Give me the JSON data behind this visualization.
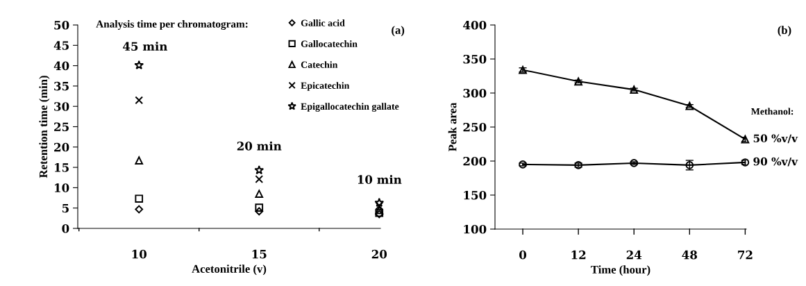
{
  "chart_data": [
    {
      "type": "scatter",
      "categories": [
        "10",
        "15",
        "20"
      ],
      "xlabel": "Acetonitrile (v)",
      "ylabel": "Retention time (min)",
      "ylim": [
        0,
        50
      ],
      "yticks": [
        0,
        5,
        10,
        15,
        20,
        25,
        30,
        35,
        40,
        45,
        50
      ],
      "grid": false,
      "legend": "top right",
      "annotations": [
        "Analysis time per chromatogram:",
        "(a)",
        "45 min",
        "20 min",
        "10 min"
      ],
      "series": [
        {
          "name": "Gallic acid",
          "color": "#000000",
          "marker": "diamond",
          "values": [
            4.7,
            4.2,
            3.5
          ]
        },
        {
          "name": "Gallocatechin",
          "color": "#000000",
          "marker": "square",
          "values": [
            7.3,
            5.1,
            3.8
          ]
        },
        {
          "name": "Catechin",
          "color": "#000000",
          "marker": "triangle",
          "values": [
            16.7,
            8.5,
            4.5
          ]
        },
        {
          "name": "Epicatechin",
          "color": "#000000",
          "marker": "cross",
          "values": [
            31.5,
            12.1,
            5.5
          ]
        },
        {
          "name": "Epigallocatechin gallate",
          "color": "#000000",
          "marker": "star",
          "values": [
            40.1,
            14.3,
            6.3
          ]
        }
      ]
    },
    {
      "type": "line",
      "categories": [
        "0",
        "12",
        "24",
        "48",
        "72"
      ],
      "xlabel": "Time (hour)",
      "ylabel": "Peak area",
      "ylim": [
        100,
        400
      ],
      "yticks": [
        100,
        150,
        200,
        250,
        300,
        350,
        400
      ],
      "grid": false,
      "legend": false,
      "legend_title": "Methanol:",
      "line_style": "solid",
      "annotations": [
        "(b)"
      ],
      "series": [
        {
          "name": "50 %v/v",
          "color": "#000000",
          "marker": "triangle",
          "values": [
            334,
            317,
            305,
            281,
            232
          ],
          "errors": [
            3,
            2,
            2,
            2,
            3
          ]
        },
        {
          "name": "90 %v/v",
          "color": "#000000",
          "marker": "circle",
          "values": [
            195,
            194,
            197,
            194,
            198
          ],
          "errors": [
            2,
            3,
            2,
            7,
            3
          ]
        }
      ]
    }
  ]
}
